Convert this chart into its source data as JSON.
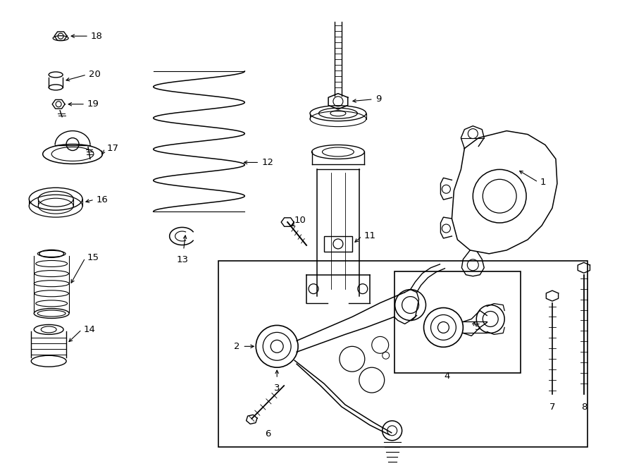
{
  "bg_color": "#ffffff",
  "line_color": "#000000",
  "lw": 1.0,
  "fig_width": 9.0,
  "fig_height": 6.61,
  "dpi": 100,
  "xlim": [
    0,
    900
  ],
  "ylim": [
    0,
    661
  ]
}
